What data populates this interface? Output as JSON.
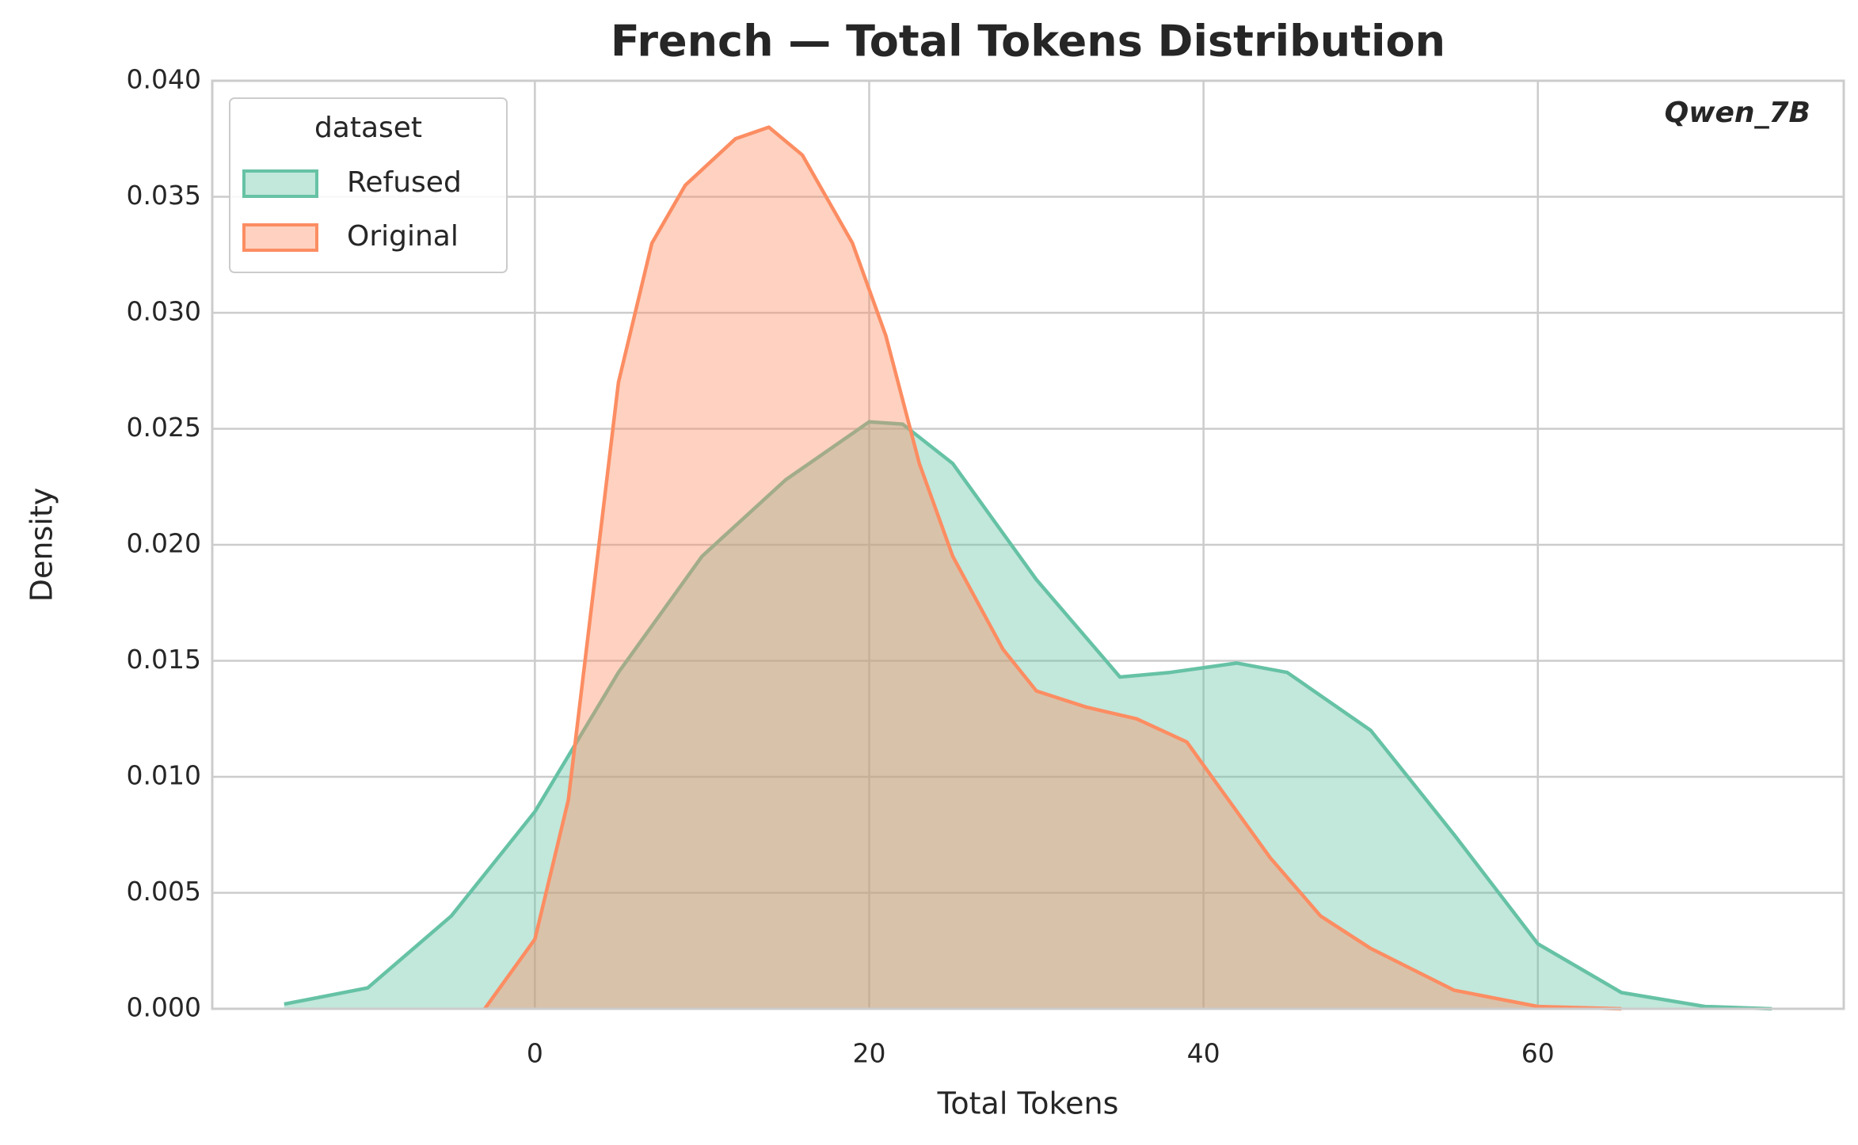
{
  "chart_data": {
    "type": "kde",
    "title": "French — Total Tokens Distribution",
    "x_label": "Total Tokens",
    "y_label": "Density",
    "annotation": "Qwen_7B",
    "legend_title": "dataset",
    "legend_position": "upper-left",
    "grid": true,
    "xlim": [
      -19.3,
      78.3
    ],
    "ylim": [
      0,
      0.04
    ],
    "xticks": [
      0,
      20,
      40,
      60
    ],
    "yticks": [
      {
        "value": 0,
        "label": "0.000"
      },
      {
        "value": 0.005,
        "label": "0.005"
      },
      {
        "value": 0.01,
        "label": "0.010"
      },
      {
        "value": 0.015,
        "label": "0.015"
      },
      {
        "value": 0.02,
        "label": "0.020"
      },
      {
        "value": 0.025,
        "label": "0.025"
      },
      {
        "value": 0.03,
        "label": "0.030"
      },
      {
        "value": 0.035,
        "label": "0.035"
      },
      {
        "value": 0.04,
        "label": "0.040"
      }
    ],
    "series": [
      {
        "name": "Refused",
        "color": "#66c2a5",
        "x": [
          -15,
          -10,
          -5,
          0,
          5,
          10,
          15,
          20,
          22,
          25,
          30,
          35,
          38,
          42,
          45,
          50,
          55,
          60,
          65,
          70,
          74
        ],
        "values": [
          0.0002,
          0.0009,
          0.004,
          0.0085,
          0.0145,
          0.0195,
          0.0228,
          0.0253,
          0.0252,
          0.0235,
          0.0185,
          0.0143,
          0.0145,
          0.0149,
          0.0145,
          0.012,
          0.0075,
          0.0028,
          0.0007,
          0.0001,
          0
        ]
      },
      {
        "name": "Original",
        "color": "#fc8d62",
        "x": [
          -3,
          0,
          2,
          3,
          5,
          7,
          9,
          12,
          14,
          16,
          19,
          21,
          23,
          25,
          28,
          30,
          33,
          36,
          39,
          41,
          44,
          47,
          50,
          55,
          60,
          65
        ],
        "values": [
          0,
          0.003,
          0.009,
          0.015,
          0.027,
          0.033,
          0.0355,
          0.0375,
          0.038,
          0.0368,
          0.033,
          0.029,
          0.0235,
          0.0195,
          0.0155,
          0.0137,
          0.013,
          0.0125,
          0.0115,
          0.0095,
          0.0065,
          0.004,
          0.0026,
          0.0008,
          0.0001,
          0
        ]
      }
    ]
  }
}
